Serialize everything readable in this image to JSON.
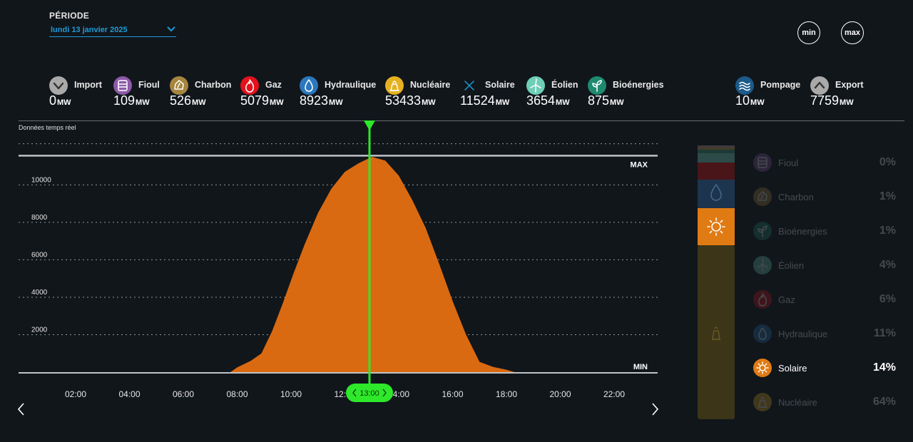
{
  "header": {
    "period_label": "PÉRIODE",
    "date_value": "lundi 13 janvier 2025",
    "min_button": "min",
    "max_button": "max"
  },
  "sources": [
    {
      "key": "import",
      "name": "Import",
      "value": "0",
      "unit": "MW",
      "color": "#a9a9a9",
      "icon": "chevron-down-icon"
    },
    {
      "key": "fioul",
      "name": "Fioul",
      "value": "109",
      "unit": "MW",
      "color": "#8e5aa8",
      "icon": "oil-barrel-icon"
    },
    {
      "key": "charbon",
      "name": "Charbon",
      "value": "526",
      "unit": "MW",
      "color": "#a6863e",
      "icon": "coal-icon"
    },
    {
      "key": "gaz",
      "name": "Gaz",
      "value": "5079",
      "unit": "MW",
      "color": "#e2121d",
      "icon": "flame-icon"
    },
    {
      "key": "hydraulique",
      "name": "Hydraulique",
      "value": "8923",
      "unit": "MW",
      "color": "#2c77bd",
      "icon": "water-drop-icon"
    },
    {
      "key": "nucleaire",
      "name": "Nucléaire",
      "value": "53433",
      "unit": "MW",
      "color": "#e5b120",
      "icon": "nuclear-plant-icon"
    },
    {
      "key": "solaire",
      "name": "Solaire",
      "value": "11524",
      "unit": "MW",
      "color": "#1d9bd7",
      "icon": "close-x-icon"
    },
    {
      "key": "eolien",
      "name": "Éolien",
      "value": "3654",
      "unit": "MW",
      "color": "#6ecfb6",
      "icon": "wind-turbine-icon"
    },
    {
      "key": "bioenergies",
      "name": "Bioénergies",
      "value": "875",
      "unit": "MW",
      "color": "#1f8a6e",
      "icon": "sprout-icon"
    },
    {
      "key": "pompage",
      "name": "Pompage",
      "value": "10",
      "unit": "MW",
      "color": "#1c5a8a",
      "icon": "waves-icon"
    },
    {
      "key": "export",
      "name": "Export",
      "value": "7759",
      "unit": "MW",
      "color": "#a9a9a9",
      "icon": "chevron-up-icon"
    }
  ],
  "chart_label": "Données temps réel",
  "cursor_time": "13:00",
  "chart_data": {
    "type": "area",
    "title": "",
    "xlabel": "",
    "ylabel": "",
    "color": "#d96a12",
    "ylim": [
      0,
      11500
    ],
    "y_ticks": [
      2000,
      4000,
      6000,
      8000,
      10000
    ],
    "x_ticks": [
      "02:00",
      "04:00",
      "06:00",
      "08:00",
      "10:00",
      "12:00",
      "14:00",
      "16:00",
      "18:00",
      "20:00",
      "22:00"
    ],
    "max_label": "MAX",
    "min_label": "MIN",
    "max_value": 11524,
    "min_value": 0,
    "series": [
      {
        "x": [
          7.75,
          8.0,
          8.5,
          8.9,
          9.3,
          9.7,
          10.1,
          10.5,
          11.0,
          11.5,
          12.0,
          12.5,
          13.0,
          13.5,
          14.0,
          14.5,
          15.0,
          15.5,
          16.0,
          16.5,
          17.0,
          17.5,
          18.0,
          18.3
        ],
        "y": [
          0,
          250,
          600,
          1000,
          2200,
          3700,
          5300,
          6800,
          8500,
          9800,
          10700,
          11150,
          11500,
          11300,
          10500,
          9200,
          7700,
          5800,
          3800,
          2000,
          550,
          280,
          130,
          0
        ]
      }
    ]
  },
  "breakdown": {
    "items": [
      {
        "name": "Fioul",
        "percent": "0%",
        "color": "#8e5aa8",
        "icon": "oil-barrel-icon",
        "active": false
      },
      {
        "name": "Charbon",
        "percent": "1%",
        "color": "#a6863e",
        "icon": "coal-icon",
        "active": false
      },
      {
        "name": "Bioénergies",
        "percent": "1%",
        "color": "#1f8a6e",
        "icon": "sprout-icon",
        "active": false
      },
      {
        "name": "Éolien",
        "percent": "4%",
        "color": "#6ecfb6",
        "icon": "wind-turbine-icon",
        "active": false
      },
      {
        "name": "Gaz",
        "percent": "6%",
        "color": "#e2121d",
        "icon": "flame-icon",
        "active": false
      },
      {
        "name": "Hydraulique",
        "percent": "11%",
        "color": "#2c77bd",
        "icon": "water-drop-icon",
        "active": false
      },
      {
        "name": "Solaire",
        "percent": "14%",
        "color": "#e07b14",
        "icon": "sun-icon",
        "active": true
      },
      {
        "name": "Nucléaire",
        "percent": "64%",
        "color": "#e5b120",
        "icon": "nuclear-plant-icon",
        "active": false
      }
    ]
  }
}
